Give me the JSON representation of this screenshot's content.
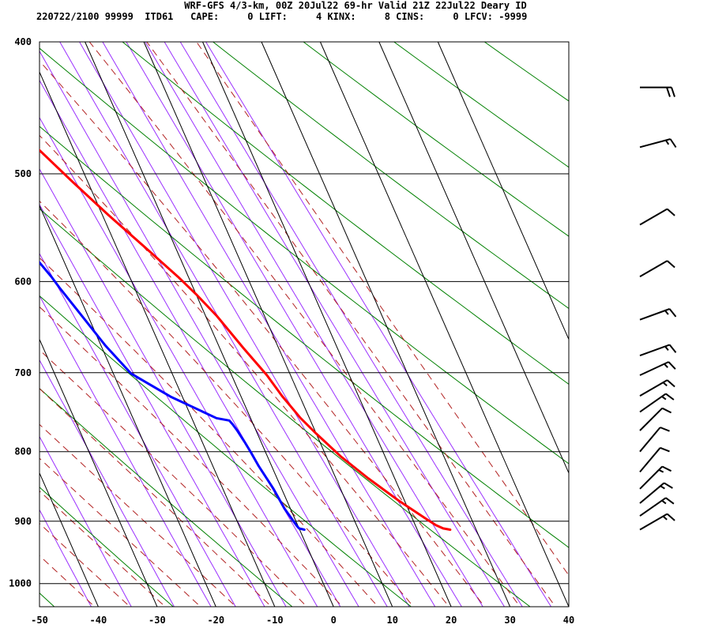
{
  "header": {
    "title": "WRF-GFS 4/3-km, 00Z 20Jul22 69-hr Valid 21Z 22Jul22 Deary ID",
    "info": "220722/2100 99999  ITD61   CAPE:     0 LIFT:     4 KINX:     8 CINS:     0 LFCV: -9999"
  },
  "chart_data": {
    "type": "line",
    "title": "WRF-GFS 4/3-km, 00Z 20Jul22 69-hr Valid 21Z 22Jul22 Deary ID",
    "xlabel": "",
    "ylabel": "",
    "x_ticks": [
      "-50",
      "-40",
      "-30",
      "-20",
      "-10",
      "0",
      "10",
      "20",
      "30",
      "40"
    ],
    "x_tick_values": [
      -50,
      -40,
      -30,
      -20,
      -10,
      0,
      10,
      20,
      30,
      40
    ],
    "y_ticks": [
      "400",
      "500",
      "600",
      "700",
      "800",
      "900",
      "1000"
    ],
    "y_tick_values": [
      400,
      500,
      600,
      700,
      800,
      900,
      1000
    ],
    "xlim": [
      -50,
      40
    ],
    "ylim": [
      1040,
      400
    ],
    "y_scale": "log pressure (hPa)",
    "skew": "skew-T",
    "grid": true,
    "series": [
      {
        "color": "#ff0000",
        "x_unit": "degC",
        "y_unit": "hPa",
        "points": [
          [
            25.6,
            913
          ],
          [
            24.5,
            911
          ],
          [
            23.5,
            906
          ],
          [
            22.5,
            898
          ],
          [
            19.0,
            869
          ],
          [
            15.5,
            837
          ],
          [
            12.5,
            807
          ],
          [
            10.0,
            776
          ],
          [
            8.5,
            756
          ],
          [
            7.0,
            728
          ],
          [
            6.0,
            703
          ],
          [
            4.0,
            671
          ],
          [
            1.9,
            636
          ],
          [
            0.0,
            613
          ],
          [
            -1.8,
            595
          ],
          [
            -5.2,
            566
          ],
          [
            -9.0,
            536
          ],
          [
            -12.7,
            506
          ],
          [
            -16.3,
            477
          ],
          [
            -19.6,
            451
          ],
          [
            -21.6,
            433
          ]
        ]
      },
      {
        "color": "#0000ff",
        "x_unit": "degC",
        "y_unit": "hPa",
        "points": [
          [
            0.8,
            913
          ],
          [
            0.0,
            911
          ],
          [
            -0.2,
            907
          ],
          [
            -1.0,
            881
          ],
          [
            -1.4,
            852
          ],
          [
            -2.2,
            820
          ],
          [
            -2.5,
            801
          ],
          [
            -2.8,
            787
          ],
          [
            -3.2,
            772
          ],
          [
            -3.5,
            764
          ],
          [
            -3.8,
            759
          ],
          [
            -5.8,
            756
          ],
          [
            -12.0,
            729
          ],
          [
            -17.0,
            701
          ],
          [
            -19.3,
            668
          ],
          [
            -20.8,
            640
          ],
          [
            -22.7,
            607
          ],
          [
            -23.3,
            595
          ],
          [
            -26.8,
            545
          ],
          [
            -29.8,
            518
          ],
          [
            -36.4,
            472
          ],
          [
            -38.8,
            456
          ],
          [
            -42.2,
            432
          ]
        ]
      }
    ],
    "background_lines": {
      "isotherms_color": "#000000",
      "dry_adiabats_color": "#008000",
      "moist_adiabats_color": "#b22222",
      "mixing_ratio_color": "#9b30ff"
    },
    "wind_barbs": {
      "color": "#000000",
      "levels": [
        {
          "p": 432,
          "dir": 270,
          "speed": 20
        },
        {
          "p": 478,
          "dir": 255,
          "speed": 15
        },
        {
          "p": 545,
          "dir": 240,
          "speed": 10
        },
        {
          "p": 595,
          "dir": 240,
          "speed": 10
        },
        {
          "p": 640,
          "dir": 250,
          "speed": 15
        },
        {
          "p": 680,
          "dir": 250,
          "speed": 15
        },
        {
          "p": 703,
          "dir": 245,
          "speed": 15
        },
        {
          "p": 728,
          "dir": 240,
          "speed": 15
        },
        {
          "p": 748,
          "dir": 235,
          "speed": 15
        },
        {
          "p": 772,
          "dir": 225,
          "speed": 10
        },
        {
          "p": 800,
          "dir": 220,
          "speed": 10
        },
        {
          "p": 828,
          "dir": 220,
          "speed": 10
        },
        {
          "p": 852,
          "dir": 225,
          "speed": 15
        },
        {
          "p": 873,
          "dir": 230,
          "speed": 15
        },
        {
          "p": 892,
          "dir": 235,
          "speed": 15
        },
        {
          "p": 913,
          "dir": 240,
          "speed": 15
        }
      ]
    }
  }
}
